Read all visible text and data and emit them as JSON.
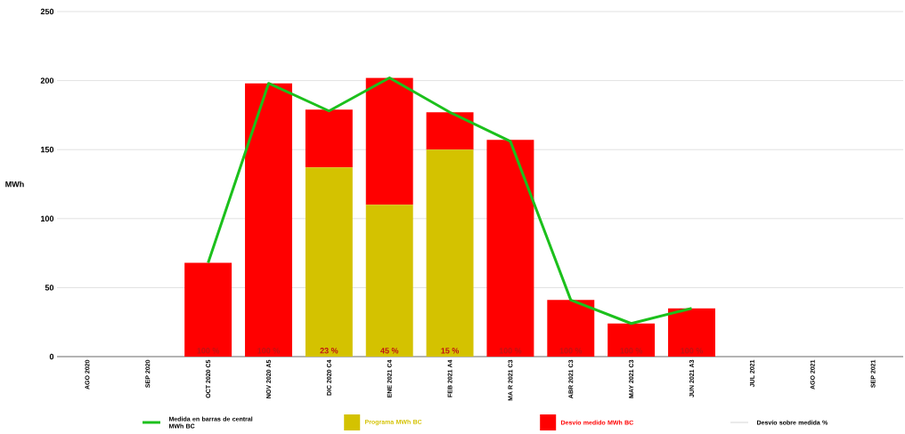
{
  "chart_data": {
    "type": "bar",
    "stacked": true,
    "ylabel": "MWh",
    "categories": [
      "AGO 2020",
      "SEP 2020",
      "OCT 2020 C5",
      "NOV 2020 A5",
      "DIC 2020 C4",
      "ENE 2021 C4",
      "FEB 2021 A4",
      "MA R 2021 C3",
      "ABR 2021 C3",
      "MAY 2021 C3",
      "JUN 2021 A3",
      "JUL 2021",
      "AGO 2021",
      "SEP 2021"
    ],
    "series": [
      {
        "name": "Medida en barras de central MWh BC",
        "type": "line",
        "color": "#1cc01c",
        "values": [
          null,
          null,
          68,
          198,
          178,
          202,
          177,
          156,
          41,
          24,
          35,
          null,
          null,
          null
        ]
      },
      {
        "name": "Programa MWh BC",
        "color": "#d4c200",
        "values": [
          null,
          null,
          0,
          0,
          137,
          110,
          150,
          0,
          0,
          0,
          0,
          null,
          null,
          null
        ]
      },
      {
        "name": "Desvío medido MWh BC",
        "color": "#ff0000",
        "values": [
          null,
          null,
          68,
          198,
          42,
          92,
          27,
          157,
          41,
          24,
          35,
          null,
          null,
          null
        ]
      },
      {
        "name": "Desvío sobre medida %",
        "type": "line",
        "color": "#dddddd",
        "values": [
          null,
          null,
          null,
          null,
          null,
          null,
          null,
          null,
          null,
          null,
          null,
          null,
          null,
          null
        ],
        "value_labels": [
          null,
          null,
          "100 %",
          "100 %",
          "23 %",
          "45 %",
          "15 %",
          "100 %",
          "100 %",
          "100 %",
          "100 %",
          null,
          null,
          null
        ]
      }
    ],
    "ylim": [
      0,
      250
    ],
    "yticks": [
      0,
      50,
      100,
      150,
      200,
      250
    ],
    "grid": "y",
    "legend": "bottom",
    "marker": "none"
  }
}
